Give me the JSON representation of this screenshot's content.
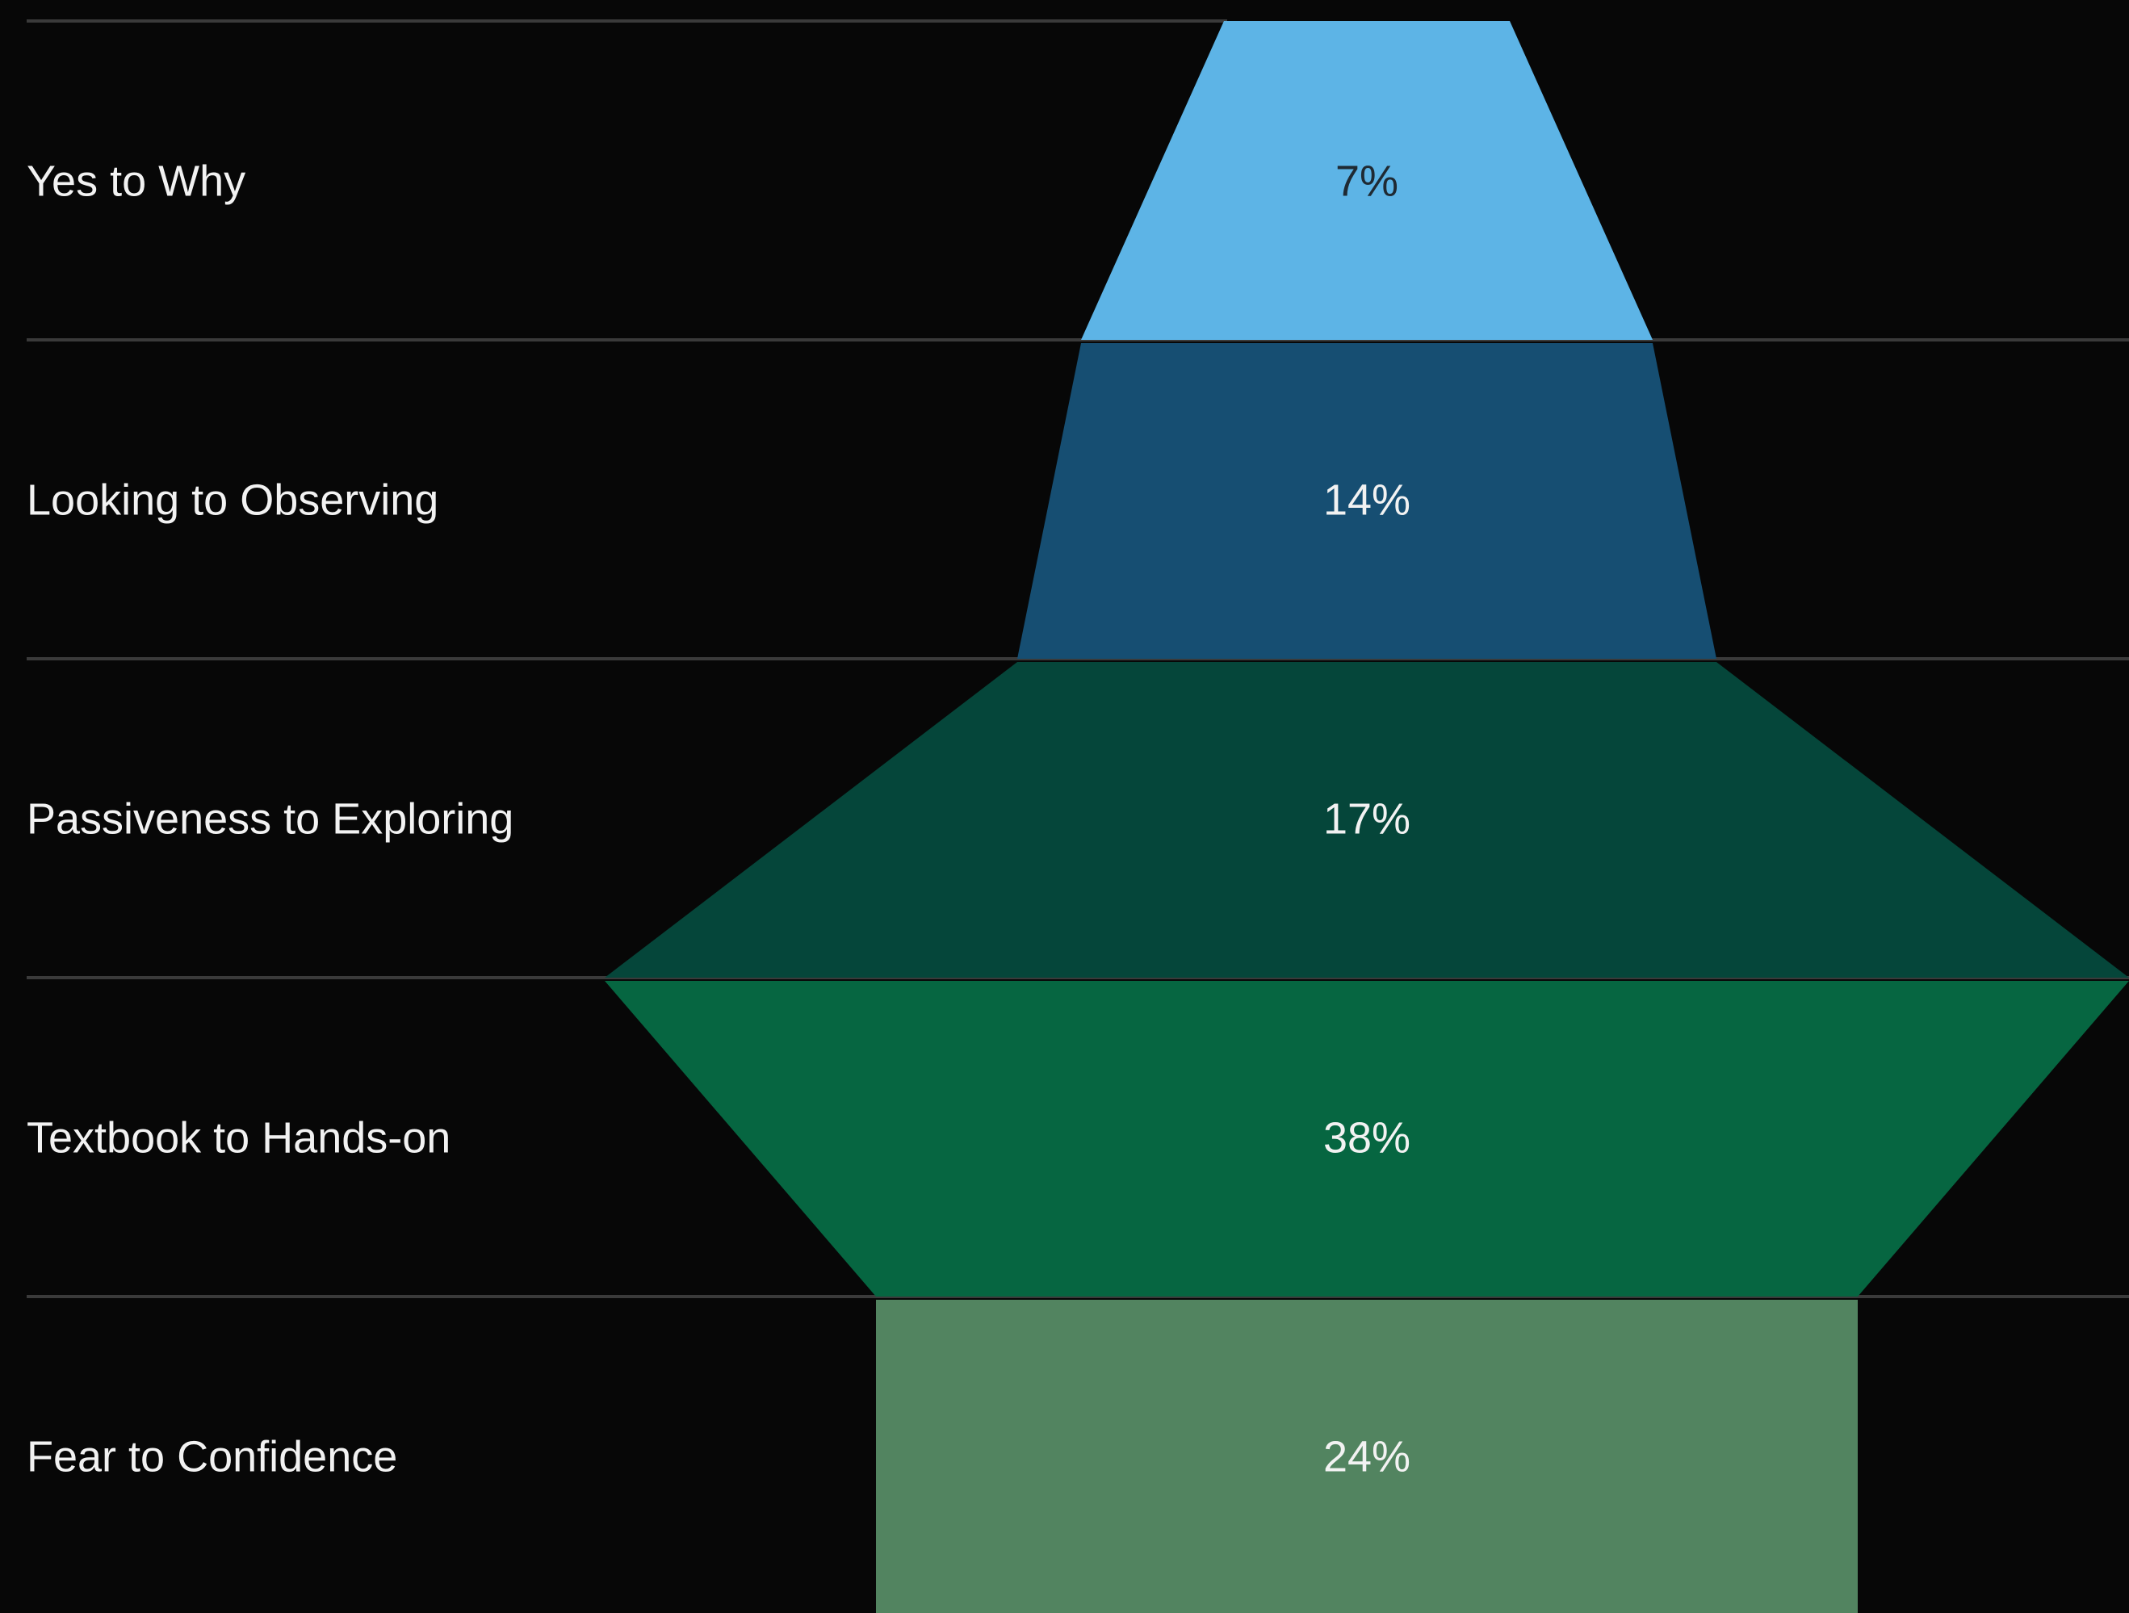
{
  "chart_data": {
    "type": "funnel",
    "categories": [
      "Yes to Why",
      "Looking to Observing",
      "Passiveness to Exploring",
      "Textbook to Hands-on",
      "Fear to Confidence"
    ],
    "values": [
      7,
      14,
      17,
      38,
      24
    ],
    "value_labels": [
      "7%",
      "14%",
      "17%",
      "38%",
      "24%"
    ],
    "unit": "%",
    "colors": [
      "#5db4e6",
      "#164e72",
      "#05463a",
      "#066641",
      "#528460"
    ],
    "value_label_colors": [
      "#1f2a33",
      "#f2f2f2",
      "#f2f2f2",
      "#f2f2f2",
      "#f2f2f2"
    ],
    "background": "#070707",
    "grid": true
  }
}
